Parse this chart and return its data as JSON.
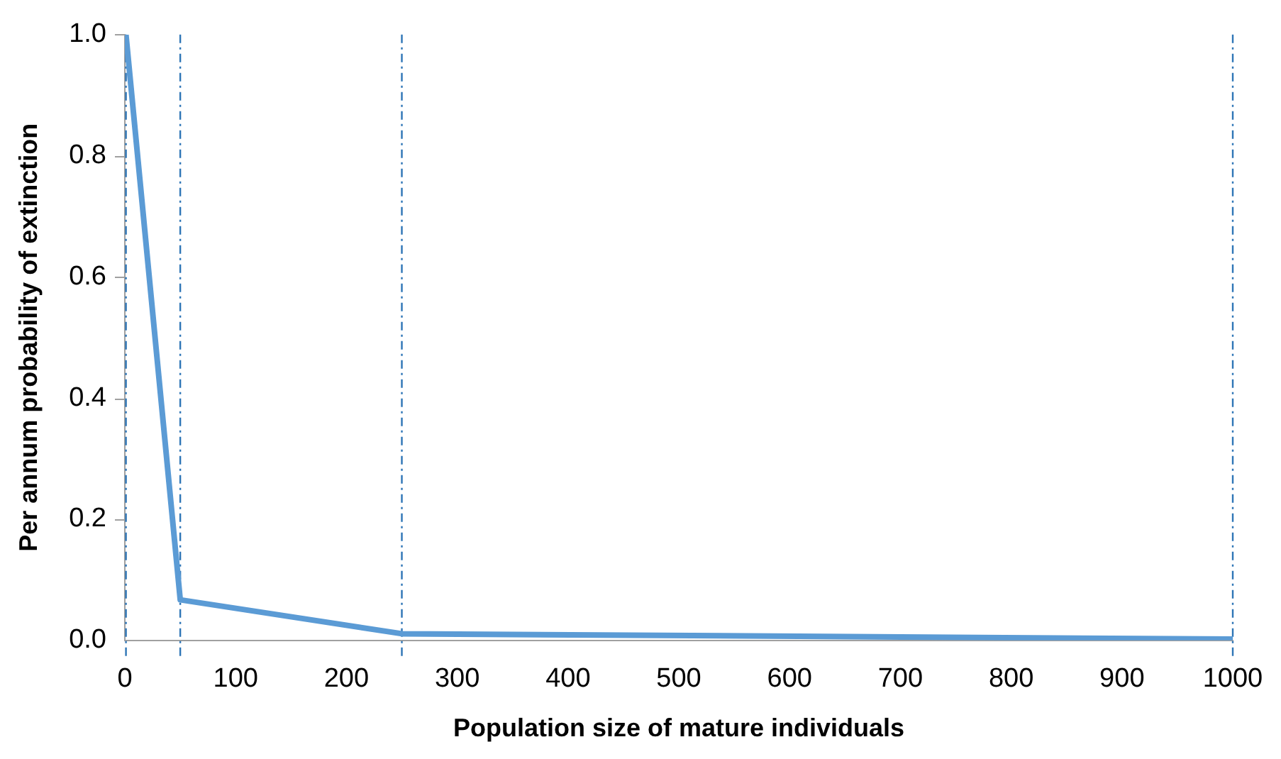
{
  "chart_data": {
    "type": "line",
    "xlabel": "Population size of mature individuals",
    "ylabel": "Per annum probability of extinction",
    "x": [
      1,
      50,
      250,
      1000
    ],
    "series": [
      {
        "color": "#5b9bd5",
        "values": [
          1.0,
          0.067,
          0.011,
          0.002
        ]
      }
    ],
    "xlim": [
      0,
      1000
    ],
    "xticks": [
      0,
      100,
      200,
      300,
      400,
      500,
      600,
      700,
      800,
      900,
      1000
    ],
    "ylim": [
      0,
      1
    ],
    "yticks": [
      {
        "value": 0,
        "label": "0.0"
      },
      {
        "value": 0.2,
        "label": "0.2"
      },
      {
        "value": 0.4,
        "label": "0.4"
      },
      {
        "value": 0.6,
        "label": "0.6"
      },
      {
        "value": 0.8,
        "label": "0.8"
      },
      {
        "value": 1,
        "label": "1.0"
      }
    ],
    "ref_lines": [
      {
        "axis": "x",
        "value": 1,
        "color": "#2e75b6",
        "line_style": "dashdot"
      },
      {
        "axis": "x",
        "value": 50,
        "color": "#2e75b6",
        "line_style": "dashdot"
      },
      {
        "axis": "x",
        "value": 250,
        "color": "#2e75b6",
        "line_style": "dashdot"
      },
      {
        "axis": "x",
        "value": 1000,
        "color": "#2e75b6",
        "line_style": "dashdot"
      }
    ],
    "grid": false,
    "legend": false,
    "marker": "none",
    "line_style": "solid"
  }
}
